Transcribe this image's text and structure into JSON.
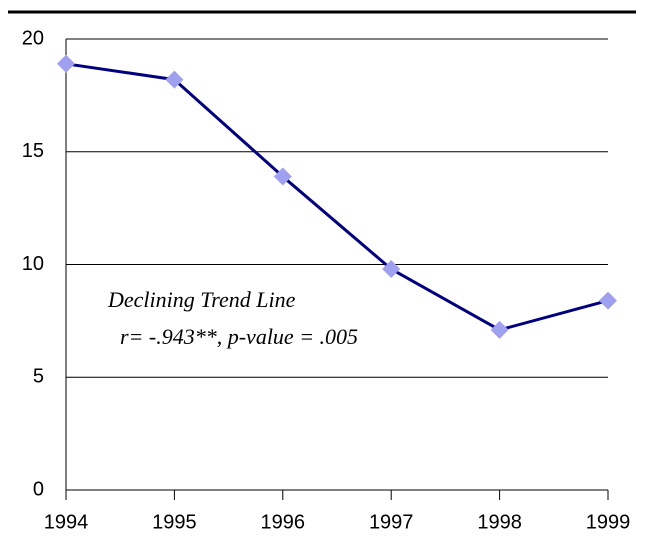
{
  "chart_data": {
    "type": "line",
    "categories": [
      "1994",
      "1995",
      "1996",
      "1997",
      "1998",
      "1999"
    ],
    "series": [
      {
        "color": "#000080",
        "marker_color": "#a0a0f0",
        "values": [
          18.9,
          18.2,
          13.9,
          9.8,
          7.1,
          8.4
        ]
      }
    ],
    "ylim": [
      0,
      20
    ],
    "yticks": [
      0,
      5,
      10,
      15,
      20
    ],
    "grid": true,
    "annotations": [
      "Declining Trend Line",
      "r= -.943**, p-value = .005"
    ]
  }
}
